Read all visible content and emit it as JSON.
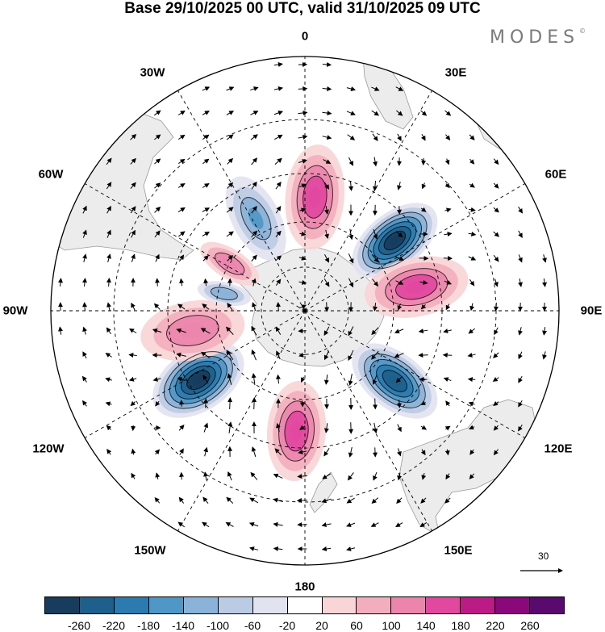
{
  "title": "Base 29/10/2025 00 UTC, valid 31/10/2025 09 UTC",
  "brand": "MODES",
  "brand_mark": "©",
  "meridian_labels": {
    "lon_0": "0",
    "lon_30e": "30E",
    "lon_60e": "60E",
    "lon_90e": "90E",
    "lon_120e": "120E",
    "lon_150e": "150E",
    "lon_180": "180",
    "lon_150w": "150W",
    "lon_120w": "120W",
    "lon_90w": "90W",
    "lon_60w": "60W",
    "lon_30w": "30W"
  },
  "reference_vector": {
    "value": "30"
  },
  "colorbar": {
    "ticks": [
      "-260",
      "-220",
      "-180",
      "-140",
      "-100",
      "-60",
      "-20",
      "20",
      "60",
      "100",
      "140",
      "180",
      "220",
      "260"
    ],
    "colors": [
      "#173c5e",
      "#1f5f8b",
      "#2b7bb0",
      "#4f97c6",
      "#8bb2d8",
      "#bccbe4",
      "#e2e3f0",
      "#ffffff",
      "#f9d5d7",
      "#f3aebd",
      "#ec85ac",
      "#e2489f",
      "#bb1b85",
      "#8a087a",
      "#5a0a6e"
    ]
  },
  "anomaly_centres": [
    {
      "name": "pos-0",
      "lon": 5,
      "lat": -52,
      "value": 160,
      "extent": 17
    },
    {
      "name": "neg-50e",
      "lon": 52,
      "lat": -52,
      "value": -260,
      "extent": 16
    },
    {
      "name": "pos-80e",
      "lon": 78,
      "lat": -52,
      "value": 150,
      "extent": 17
    },
    {
      "name": "neg-130e",
      "lon": 128,
      "lat": -52,
      "value": -220,
      "extent": 16
    },
    {
      "name": "pos-175w",
      "lon": -176,
      "lat": -50,
      "value": 150,
      "extent": 16
    },
    {
      "name": "neg-125w",
      "lon": -123,
      "lat": -48,
      "value": -260,
      "extent": 16
    },
    {
      "name": "pos-105w",
      "lon": -100,
      "lat": -52,
      "value": 120,
      "extent": 17
    },
    {
      "name": "neg-80w",
      "lon": -78,
      "lat": -62,
      "value": -110,
      "extent": 9
    },
    {
      "name": "pos-60w",
      "lon": -58,
      "lat": -60,
      "value": 120,
      "extent": 11
    },
    {
      "name": "neg-30w",
      "lon": -28,
      "lat": -55,
      "value": -130,
      "extent": 15
    }
  ]
}
